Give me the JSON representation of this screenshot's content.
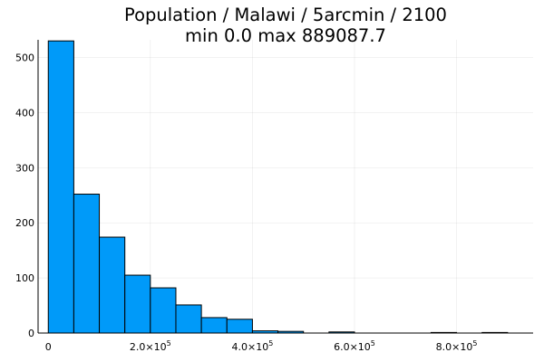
{
  "chart_data": {
    "type": "bar",
    "title": "Population / Malawi / 5arcmin / 2100",
    "subtitle": "min 0.0  max 889087.7",
    "xlabel": "",
    "ylabel": "",
    "xlim": [
      -20000,
      950000
    ],
    "ylim": [
      0,
      532
    ],
    "grid": true,
    "legend": false,
    "bar_color": "#009AF9",
    "x_ticks": [
      {
        "value": 0,
        "mantissa": "0",
        "exponent": ""
      },
      {
        "value": 200000,
        "mantissa": "2.0×10",
        "exponent": "5"
      },
      {
        "value": 400000,
        "mantissa": "4.0×10",
        "exponent": "5"
      },
      {
        "value": 600000,
        "mantissa": "6.0×10",
        "exponent": "5"
      },
      {
        "value": 800000,
        "mantissa": "8.0×10",
        "exponent": "5"
      }
    ],
    "y_ticks": [
      0,
      100,
      200,
      300,
      400,
      500
    ],
    "bins": [
      {
        "x0": 0,
        "x1": 50000,
        "count": 530
      },
      {
        "x0": 50000,
        "x1": 100000,
        "count": 252
      },
      {
        "x0": 100000,
        "x1": 150000,
        "count": 174
      },
      {
        "x0": 150000,
        "x1": 200000,
        "count": 105
      },
      {
        "x0": 200000,
        "x1": 250000,
        "count": 82
      },
      {
        "x0": 250000,
        "x1": 300000,
        "count": 51
      },
      {
        "x0": 300000,
        "x1": 350000,
        "count": 28
      },
      {
        "x0": 350000,
        "x1": 400000,
        "count": 25
      },
      {
        "x0": 400000,
        "x1": 450000,
        "count": 4
      },
      {
        "x0": 450000,
        "x1": 500000,
        "count": 3
      },
      {
        "x0": 500000,
        "x1": 550000,
        "count": 0
      },
      {
        "x0": 550000,
        "x1": 600000,
        "count": 2
      },
      {
        "x0": 600000,
        "x1": 650000,
        "count": 0
      },
      {
        "x0": 650000,
        "x1": 700000,
        "count": 0
      },
      {
        "x0": 700000,
        "x1": 750000,
        "count": 0
      },
      {
        "x0": 750000,
        "x1": 800000,
        "count": 1
      },
      {
        "x0": 800000,
        "x1": 850000,
        "count": 0
      },
      {
        "x0": 850000,
        "x1": 900000,
        "count": 1
      }
    ]
  }
}
